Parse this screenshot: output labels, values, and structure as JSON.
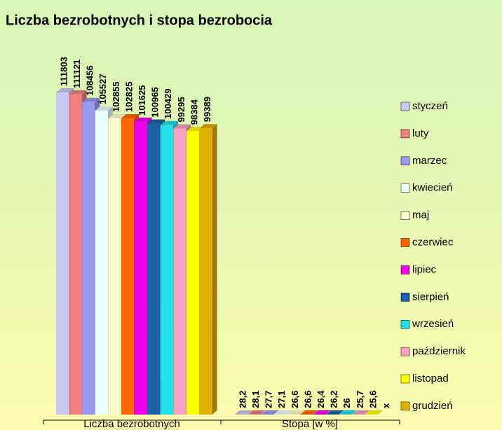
{
  "chart_data": {
    "type": "bar3d",
    "title": "Liczba bezrobotnych i stopa bezrobocia",
    "categories": [
      "Liczba bezrobotnych",
      "Stopa [w %]"
    ],
    "series": [
      {
        "name": "styczeń",
        "color": "#c8c8f0",
        "values": [
          111803,
          28.2
        ],
        "value_labels": [
          "111803",
          "28,2"
        ]
      },
      {
        "name": "luty",
        "color": "#f08080",
        "values": [
          111121,
          28.1
        ],
        "value_labels": [
          "111121",
          "28,1"
        ]
      },
      {
        "name": "marzec",
        "color": "#9999ee",
        "values": [
          108456,
          27.7
        ],
        "value_labels": [
          "108456",
          "27,7"
        ]
      },
      {
        "name": "kwiecień",
        "color": "#eaffff",
        "values": [
          105527,
          27.1
        ],
        "value_labels": [
          "105527",
          "27,1"
        ]
      },
      {
        "name": "maj",
        "color": "#ffffcc",
        "values": [
          102855,
          26.6
        ],
        "value_labels": [
          "102855",
          "26,6"
        ]
      },
      {
        "name": "czerwiec",
        "color": "#ff6600",
        "values": [
          102825,
          26.6
        ],
        "value_labels": [
          "102825",
          "26,6"
        ]
      },
      {
        "name": "lipiec",
        "color": "#ee00ee",
        "values": [
          101625,
          26.4
        ],
        "value_labels": [
          "101625",
          "26,4"
        ]
      },
      {
        "name": "sierpień",
        "color": "#1f5fa8",
        "values": [
          100965,
          26.2
        ],
        "value_labels": [
          "100965",
          "26,2"
        ]
      },
      {
        "name": "wrzesień",
        "color": "#22e0e8",
        "values": [
          100429,
          26
        ],
        "value_labels": [
          "100429",
          "26"
        ]
      },
      {
        "name": "październik",
        "color": "#f4a0c0",
        "values": [
          99295,
          25.7
        ],
        "value_labels": [
          "99295",
          "25,7"
        ]
      },
      {
        "name": "listopad",
        "color": "#ffff00",
        "values": [
          98384,
          25.6
        ],
        "value_labels": [
          "98384",
          "25,6"
        ]
      },
      {
        "name": "grudzień",
        "color": "#e0b000",
        "values": [
          99389,
          null
        ],
        "value_labels": [
          "99389",
          "x"
        ]
      }
    ]
  }
}
